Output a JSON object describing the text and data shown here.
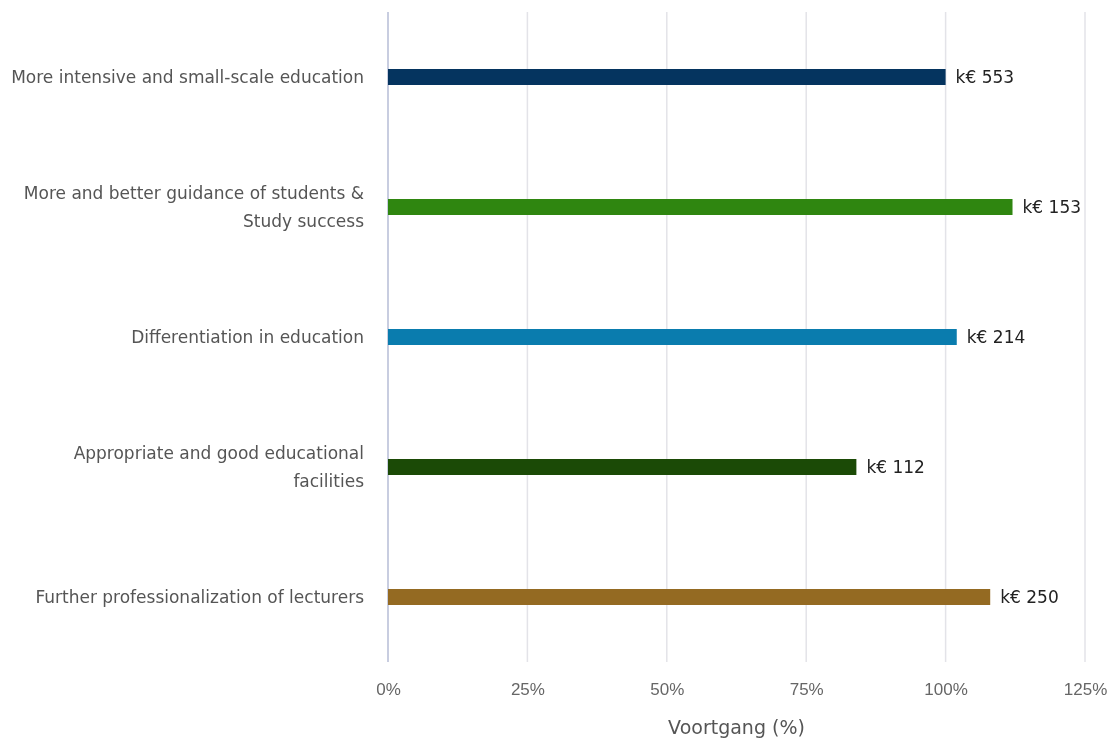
{
  "chart_data": {
    "type": "bar",
    "orientation": "horizontal",
    "xlabel": "Voortgang (%)",
    "categories": [
      "More intensive and small-scale education",
      "More and better guidance of students & Study success",
      "Differentiation in education",
      "Appropriate and good educational facilities",
      "Further professionalization of lecturers"
    ],
    "values": [
      100,
      112,
      102,
      84,
      108
    ],
    "colors": [
      "#05345f",
      "#2f8610",
      "#0a7cae",
      "#1b4a06",
      "#946a22"
    ],
    "value_labels": [
      "k€ 553",
      "k€ 153",
      "k€ 214",
      "k€ 112",
      "k€ 250"
    ],
    "xlim": [
      0,
      125
    ],
    "xticks": [
      {
        "value": 0,
        "label": "0%"
      },
      {
        "value": 25,
        "label": "25%"
      },
      {
        "value": 50,
        "label": "50%"
      },
      {
        "value": 75,
        "label": "75%"
      },
      {
        "value": 100,
        "label": "100%"
      },
      {
        "value": 125,
        "label": "125%"
      }
    ],
    "grid": "x"
  }
}
